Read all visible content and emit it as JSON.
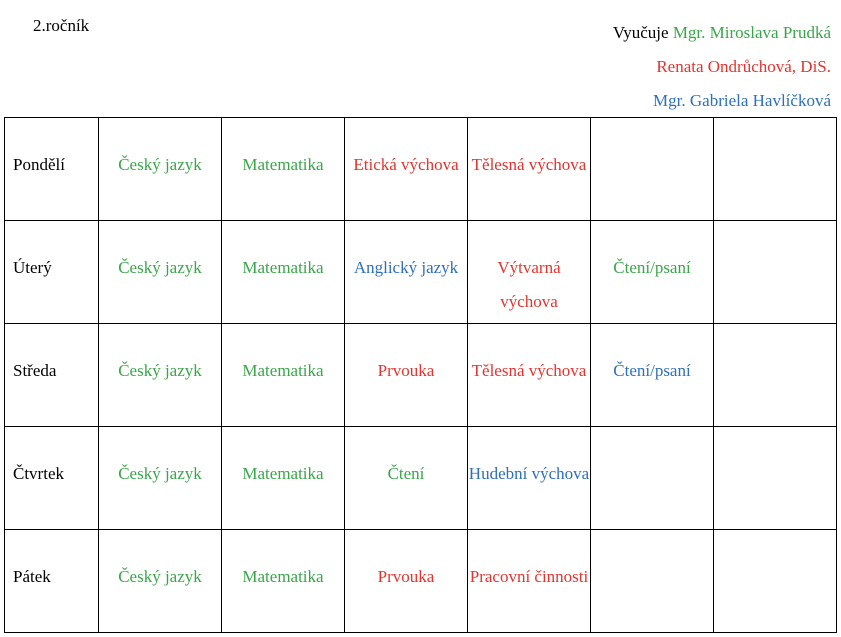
{
  "grade": "2.ročník",
  "teachers": {
    "label": "Vyučuje",
    "items": [
      {
        "name": "Mgr. Miroslava Prudká",
        "color": "green"
      },
      {
        "name": "Renata Ondrůchová, DiS.",
        "color": "red"
      },
      {
        "name": "Mgr. Gabriela Havlíčková",
        "color": "blue"
      }
    ]
  },
  "colors": {
    "green": "#3aa64a",
    "red": "#e3342f",
    "blue": "#2e6fbd"
  },
  "schedule": [
    {
      "day": "Pondělí",
      "lessons": [
        {
          "text": "Český jazyk",
          "color": "green"
        },
        {
          "text": "Matematika",
          "color": "green"
        },
        {
          "text": "Etická výchova",
          "color": "red"
        },
        {
          "text": "Tělesná výchova",
          "color": "red"
        },
        {
          "text": "",
          "color": "black"
        },
        {
          "text": "",
          "color": "black"
        }
      ]
    },
    {
      "day": "Úterý",
      "lessons": [
        {
          "text": "Český jazyk",
          "color": "green"
        },
        {
          "text": "Matematika",
          "color": "green"
        },
        {
          "text": "Anglický jazyk",
          "color": "blue"
        },
        {
          "text": "Výtvarná výchova",
          "color": "red"
        },
        {
          "text": "Čtení/psaní",
          "color": "green"
        },
        {
          "text": "",
          "color": "black"
        }
      ]
    },
    {
      "day": "Středa",
      "lessons": [
        {
          "text": "Český jazyk",
          "color": "green"
        },
        {
          "text": "Matematika",
          "color": "green"
        },
        {
          "text": "Prvouka",
          "color": "red"
        },
        {
          "text": "Tělesná výchova",
          "color": "red"
        },
        {
          "text": "Čtení/psaní",
          "color": "blue"
        },
        {
          "text": "",
          "color": "black"
        }
      ]
    },
    {
      "day": "Čtvrtek",
      "lessons": [
        {
          "text": "Český jazyk",
          "color": "green"
        },
        {
          "text": "Matematika",
          "color": "green"
        },
        {
          "text": "Čtení",
          "color": "green"
        },
        {
          "text": "Hudební výchova",
          "color": "blue"
        },
        {
          "text": "",
          "color": "black"
        },
        {
          "text": "",
          "color": "black"
        }
      ]
    },
    {
      "day": "Pátek",
      "lessons": [
        {
          "text": "Český jazyk",
          "color": "green"
        },
        {
          "text": "Matematika",
          "color": "green"
        },
        {
          "text": "Prvouka",
          "color": "red"
        },
        {
          "text": "Pracovní činnosti",
          "color": "red"
        },
        {
          "text": "",
          "color": "black"
        },
        {
          "text": "",
          "color": "black"
        }
      ]
    }
  ]
}
